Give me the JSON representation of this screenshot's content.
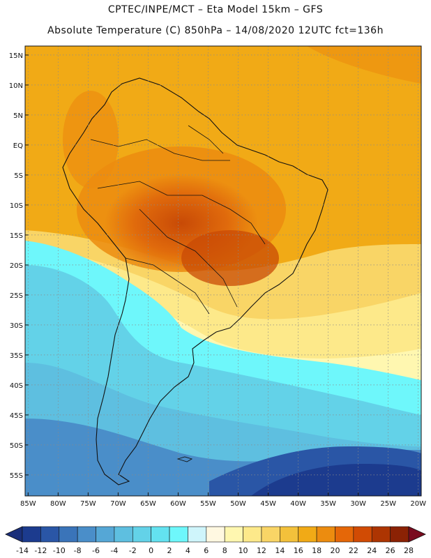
{
  "header": {
    "line1": "CPTEC/INPE/MCT –  Eta Model 15km – GFS",
    "line2": "Absolute Temperature (C) 850hPa – 14/08/2020 12UTC fct=136h"
  },
  "map": {
    "lat_labels": [
      "15N",
      "10N",
      "5N",
      "EQ",
      "5S",
      "10S",
      "15S",
      "20S",
      "25S",
      "30S",
      "35S",
      "40S",
      "45S",
      "50S",
      "55S"
    ],
    "lon_labels": [
      "85W",
      "80W",
      "75W",
      "70W",
      "65W",
      "60W",
      "55W",
      "50W",
      "45W",
      "40W",
      "35W",
      "30W",
      "25W",
      "20W"
    ]
  },
  "colorbar": {
    "labels": [
      "-14",
      "-12",
      "-10",
      "-8",
      "-6",
      "-4",
      "-2",
      "0",
      "2",
      "4",
      "6",
      "8",
      "10",
      "12",
      "14",
      "16",
      "18",
      "20",
      "22",
      "24",
      "26",
      "28"
    ],
    "colors": [
      "#1c3b8e",
      "#2a56a6",
      "#3a74b9",
      "#4a8ec9",
      "#55a7d6",
      "#5ebfe0",
      "#63d2e8",
      "#63e2f0",
      "#6ef7fb",
      "#cff5fb",
      "#fff8e1",
      "#fff7b0",
      "#fde98a",
      "#f9d566",
      "#f3c13b",
      "#f1aa16",
      "#ec8c0f",
      "#e56708",
      "#d14b04",
      "#ad3502",
      "#8b2204"
    ]
  },
  "colors": {
    "land_line": "#111111",
    "grid": "#8a8a8a"
  }
}
